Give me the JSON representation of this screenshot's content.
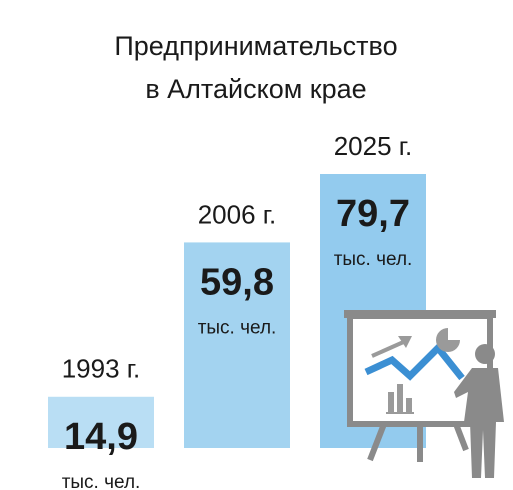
{
  "chart_data": {
    "type": "bar",
    "title": [
      "Предпринимательство",
      "в Алтайском крае"
    ],
    "categories": [
      "1993 г.",
      "2006 г.",
      "2025 г."
    ],
    "values": [
      14.9,
      59.8,
      79.7
    ],
    "value_labels": [
      "14,9",
      "59,8",
      "79,7"
    ],
    "unit": "тыс. чел.",
    "colors": [
      "#b9def4",
      "#a3d3f0",
      "#93cbee"
    ]
  }
}
